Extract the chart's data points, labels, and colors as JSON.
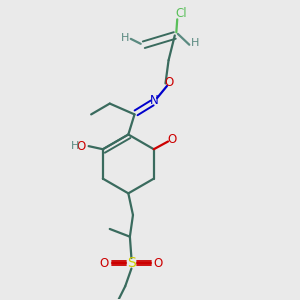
{
  "bg_color": "#eaeaea",
  "bond_color": "#3a6b5e",
  "cl_color": "#5abf5a",
  "o_color": "#cc0000",
  "n_color": "#0000cc",
  "s_color": "#cccc00",
  "h_color": "#5a8a80",
  "lw": 1.6,
  "lw2": 1.4,
  "fs": 8.5,
  "fsh": 8.0,
  "figsize": [
    3.0,
    3.0
  ],
  "dpi": 100,
  "xlim": [
    0.05,
    0.75
  ],
  "ylim": [
    0.02,
    0.98
  ]
}
